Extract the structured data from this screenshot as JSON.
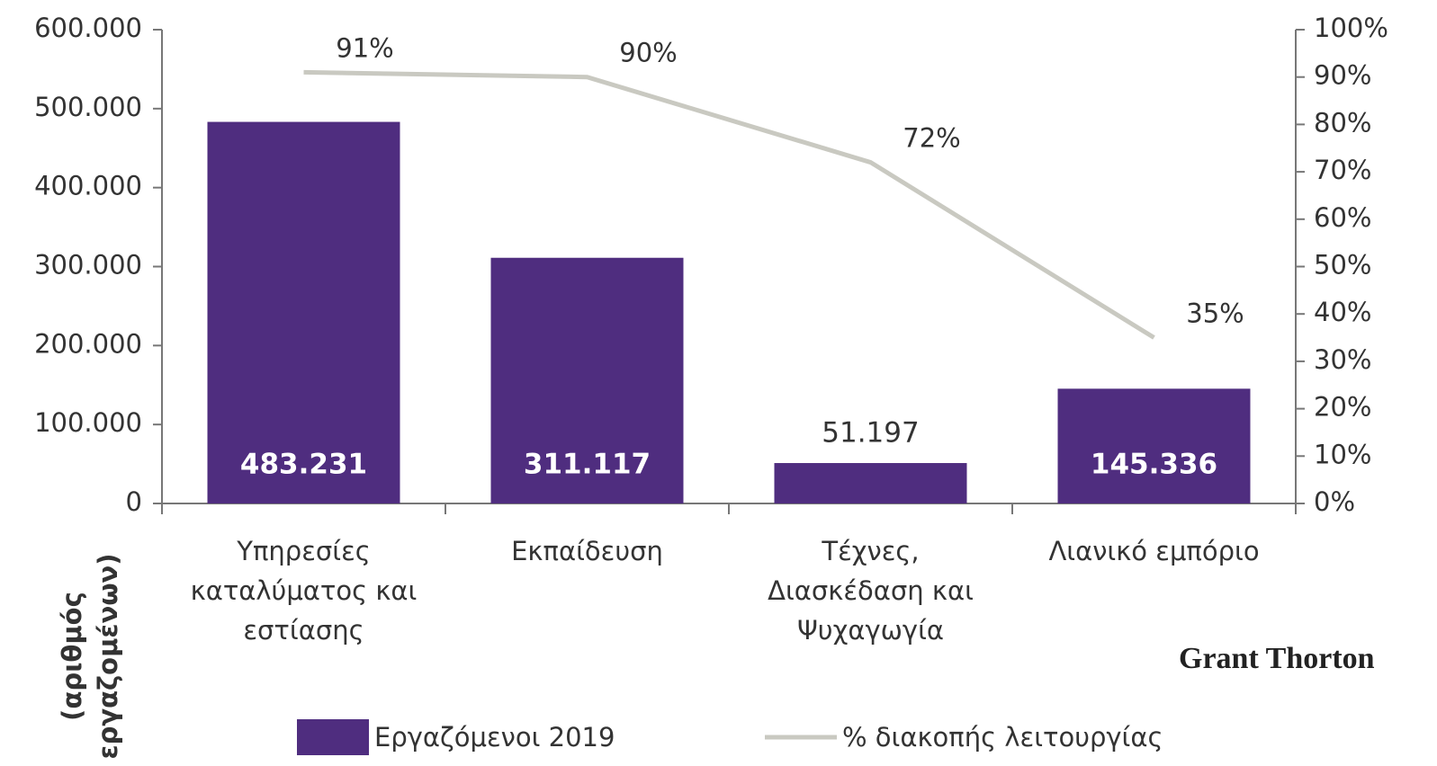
{
  "chart_data": {
    "type": "bar",
    "categories": [
      [
        "Υπηρεσίες",
        "καταλύματος και",
        "εστίασης"
      ],
      [
        "Εκπαίδευση"
      ],
      [
        "Τέχνες,",
        "Διασκέδαση και",
        "Ψυχαγωγία"
      ],
      [
        "Λιανικό εμπόριο"
      ]
    ],
    "y_label": [
      "(αριθμός",
      "εργαζομένων)"
    ],
    "annotation": "Grant Thorton",
    "legend": "bottom",
    "series": [
      {
        "name": "Εργαζόμενοι 2019",
        "type": "bar",
        "color": "#4f2d7f",
        "values": [
          483231,
          311117,
          51197,
          145336
        ],
        "value_labels": [
          "483.231",
          "311.117",
          "51.197",
          "145.336"
        ]
      },
      {
        "name": "% διακοπής λειτουργίας",
        "type": "line",
        "axis": "y2",
        "color": "#c9c9c1",
        "values": [
          91,
          90,
          72,
          35
        ],
        "value_labels": [
          "91%",
          "90%",
          "72%",
          "35%"
        ]
      }
    ],
    "ylim": [
      0,
      600000
    ],
    "yticks": [
      0,
      {
        "value": 100000,
        "label": "100.000"
      },
      {
        "value": 200000,
        "label": "200.000"
      },
      {
        "value": 300000,
        "label": "300.000"
      },
      {
        "value": 400000,
        "label": "400.000"
      },
      {
        "value": 500000,
        "label": "500.000"
      },
      {
        "value": 600000,
        "label": "600.000"
      }
    ],
    "y2lim": [
      0,
      100
    ],
    "y2ticks": [
      {
        "value": 0,
        "label": "0%"
      },
      {
        "value": 10,
        "label": "10%"
      },
      {
        "value": 20,
        "label": "20%"
      },
      {
        "value": 30,
        "label": "30%"
      },
      {
        "value": 40,
        "label": "40%"
      },
      {
        "value": 50,
        "label": "50%"
      },
      {
        "value": 60,
        "label": "60%"
      },
      {
        "value": 70,
        "label": "70%"
      },
      {
        "value": 80,
        "label": "80%"
      },
      {
        "value": 90,
        "label": "90%"
      },
      {
        "value": 100,
        "label": "100%"
      }
    ]
  }
}
